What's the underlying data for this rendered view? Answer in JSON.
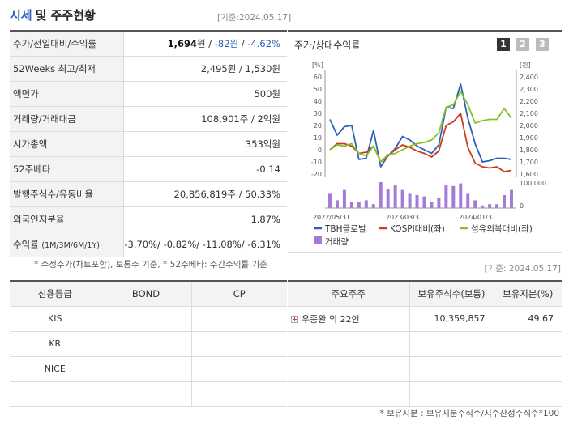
{
  "header": {
    "title_blue": "시세",
    "title_rest": "및 주주현황",
    "base_date": "[기준:2024.05.17]"
  },
  "info_rows": [
    {
      "label": "주가/전일대비/수익률",
      "price": "1,694",
      "unit": "원",
      "sep1": " / ",
      "change": "-82원",
      "sep2": " / ",
      "pct": "-4.62%"
    },
    {
      "label": "52Weeks 최고/최저",
      "value": "2,495원 / 1,530원"
    },
    {
      "label": "액면가",
      "value": "500원"
    },
    {
      "label": "거래량/거래대금",
      "value": "108,901주 / 2억원"
    },
    {
      "label": "시가총액",
      "value": "353억원"
    },
    {
      "label": "52주베타",
      "value": "-0.14"
    },
    {
      "label": "발행주식수/유동비율",
      "value": "20,856,819주 / 50.33%"
    },
    {
      "label": "외국인지분율",
      "value": "1.87%"
    },
    {
      "label": "수익률",
      "label_sub": "(1M/3M/6M/1Y)",
      "value": "-3.70%/ -0.82%/ -11.08%/ -6.31%"
    }
  ],
  "chart": {
    "title": "주가/상대수익률",
    "pages": [
      "1",
      "2",
      "3"
    ],
    "active_page": "1",
    "left_unit": "[%]",
    "right_unit": "[원]",
    "colors": {
      "tbh": "#2a62b8",
      "kospi": "#cc3b1f",
      "textile": "#86c227",
      "volume": "#a57bd8"
    }
  },
  "chart_data": {
    "type": "line",
    "x_tick_labels": [
      "2022/05/31",
      "2023/03/31",
      "2024/01/31"
    ],
    "left_axis": {
      "label": "[%]",
      "ticks": [
        60,
        50,
        40,
        30,
        20,
        10,
        0,
        -10,
        -20
      ],
      "range": [
        -20,
        60
      ]
    },
    "right_axis": {
      "label": "[원]",
      "ticks": [
        "2,400",
        "2,300",
        "2,200",
        "2,100",
        "2,000",
        "1,900",
        "1,800",
        "1,700",
        "1,600"
      ],
      "range": [
        1600,
        2400
      ]
    },
    "volume_axis": {
      "ticks": [
        "100,000",
        "0"
      ],
      "range": [
        0,
        100000
      ]
    },
    "series": [
      {
        "name": "TBH글로벌",
        "color": "#2a62b8",
        "values": [
          25,
          12,
          19,
          20,
          -8,
          -7,
          16,
          -14,
          -5,
          1,
          11,
          8,
          3,
          0,
          -3,
          4,
          35,
          34,
          54,
          26,
          5,
          -10,
          -9,
          -7,
          -7,
          -8
        ]
      },
      {
        "name": "KOSPI대비(좌)",
        "color": "#cc3b1f",
        "values": [
          0,
          5,
          5,
          3,
          -3,
          -2,
          3,
          -10,
          -5,
          0,
          4,
          2,
          -1,
          -3,
          -6,
          -1,
          20,
          23,
          30,
          2,
          -11,
          -14,
          -15,
          -14,
          -18,
          -17
        ]
      },
      {
        "name": "섬유의복대비(좌)",
        "color": "#86c227",
        "values": [
          0,
          4,
          3,
          5,
          -3,
          -5,
          3,
          -10,
          -4,
          -3,
          0,
          3,
          5,
          6,
          8,
          14,
          35,
          37,
          48,
          37,
          22,
          24,
          25,
          25,
          34,
          26
        ]
      }
    ],
    "volume": {
      "name": "거래량",
      "color": "#a57bd8",
      "values": [
        55000,
        30000,
        70000,
        25000,
        25000,
        30000,
        15000,
        100000,
        75000,
        90000,
        70000,
        55000,
        50000,
        45000,
        25000,
        40000,
        90000,
        85000,
        95000,
        55000,
        30000,
        10000,
        15000,
        15000,
        50000,
        70000
      ]
    },
    "legend": [
      {
        "name": "TBH글로벌",
        "color": "#2a62b8",
        "kind": "line"
      },
      {
        "name": "KOSPI대비(좌)",
        "color": "#cc3b1f",
        "kind": "line"
      },
      {
        "name": "섬유의복대비(좌)",
        "color": "#86c227",
        "kind": "line"
      },
      {
        "name": "거래량",
        "color": "#a57bd8",
        "kind": "box"
      }
    ]
  },
  "notes": {
    "left": "* 수정주가(차트포함), 보통주 기준, * 52주베타: 주간수익률 기준",
    "right_date": "[기준: 2024.05.17]",
    "bottom": "* 보유지분 : 보유지분주식수/지수산정주식수*100"
  },
  "credit_table": {
    "headers": [
      "신용등급",
      "BOND",
      "CP"
    ],
    "rows": [
      [
        "KIS",
        "",
        ""
      ],
      [
        "KR",
        "",
        ""
      ],
      [
        "NICE",
        "",
        ""
      ],
      [
        "",
        "",
        ""
      ]
    ]
  },
  "holders_table": {
    "headers": [
      "주요주주",
      "보유주식수(보통)",
      "보유지분(%)"
    ],
    "rows": [
      [
        "우종완 외 22인",
        "10,359,857",
        "49.67"
      ],
      [
        "",
        "",
        ""
      ],
      [
        "",
        "",
        ""
      ],
      [
        "",
        "",
        ""
      ]
    ]
  }
}
